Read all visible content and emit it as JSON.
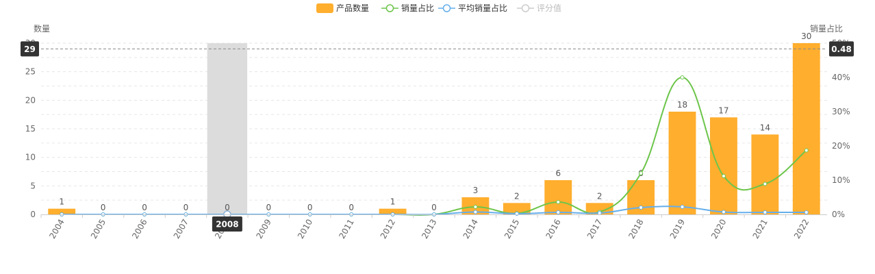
{
  "legend": [
    {
      "label": "产品数量",
      "color": "#FFAE2E",
      "kind": "bar",
      "enabled": true
    },
    {
      "label": "销量占比",
      "color": "#6CC54A",
      "kind": "line",
      "enabled": true
    },
    {
      "label": "平均销量占比",
      "color": "#64AEEB",
      "kind": "line",
      "enabled": true
    },
    {
      "label": "评分值",
      "color": "#C8C8C8",
      "kind": "line",
      "enabled": false
    }
  ],
  "chart_data": {
    "type": "bar",
    "categories": [
      "2004",
      "2005",
      "2006",
      "2007",
      "2008",
      "2009",
      "2010",
      "2011",
      "2012",
      "2013",
      "2014",
      "2015",
      "2016",
      "2017",
      "2018",
      "2019",
      "2020",
      "2021",
      "2022"
    ],
    "series": [
      {
        "name": "产品数量",
        "type": "bar",
        "axis": "left",
        "color": "#FFAE2E",
        "values": [
          1,
          0,
          0,
          0,
          0,
          0,
          0,
          0,
          1,
          0,
          3,
          2,
          6,
          2,
          6,
          18,
          17,
          14,
          30
        ]
      },
      {
        "name": "销量占比",
        "type": "line",
        "axis": "right",
        "color": "#6CC54A",
        "values": [
          0,
          0,
          0,
          0,
          0,
          0,
          0,
          0,
          0,
          0,
          0.022,
          0.003,
          0.036,
          0.007,
          0.12,
          0.4,
          0.112,
          0.089,
          0.187
        ]
      },
      {
        "name": "平均销量占比",
        "type": "line",
        "axis": "right",
        "color": "#64AEEB",
        "values": [
          0,
          0,
          0,
          0,
          0,
          0,
          0,
          0,
          0,
          0,
          0.007,
          0.002,
          0.006,
          0.004,
          0.02,
          0.022,
          0.007,
          0.006,
          0.006
        ]
      }
    ],
    "ylabel_left": "数量",
    "ylabel_right": "销量占比",
    "ylim_left": [
      0,
      30
    ],
    "ylim_right": [
      0,
      0.5
    ],
    "yticks_left": [
      "0",
      "5",
      "10",
      "15",
      "20",
      "25",
      "30"
    ],
    "yticks_right": [
      "0%",
      "10%",
      "20%",
      "30%",
      "40%",
      "50%"
    ],
    "grid": true,
    "legend_position": "top-center",
    "highlight_category": "2008",
    "crosshair_left_value": "29",
    "crosshair_right_value": "0.48",
    "bar_value_labels": [
      "1",
      "0",
      "0",
      "0",
      "0",
      "0",
      "0",
      "0",
      "1",
      "0",
      "3",
      "2",
      "6",
      "2",
      "6",
      "18",
      "17",
      "14",
      "30"
    ]
  }
}
